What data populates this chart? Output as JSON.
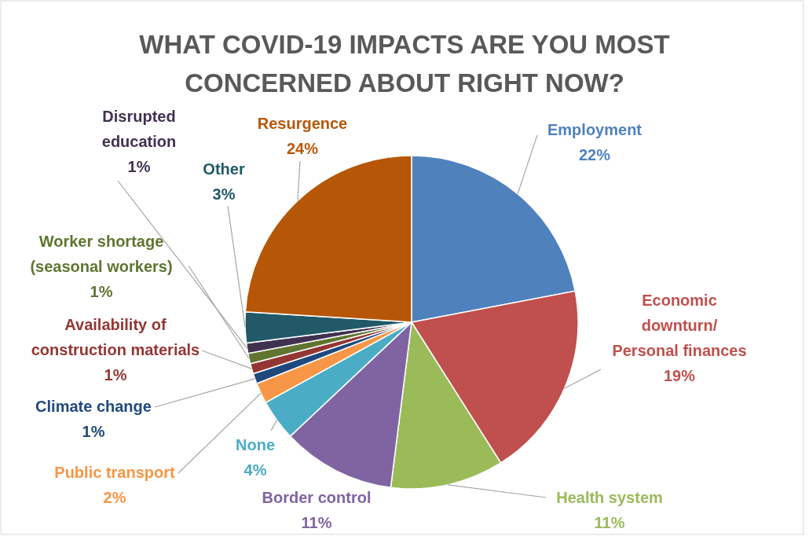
{
  "chart_data": {
    "type": "pie",
    "title": "WHAT COVID-19 IMPACTS ARE YOU MOST\nCONCERNED ABOUT RIGHT NOW?",
    "categories": [
      "Employment",
      "Economic\ndownturn/\nPersonal finances",
      "Health system",
      "Border control",
      "None",
      "Public transport",
      "Climate change",
      "Availability of\nconstruction materials",
      "Worker shortage\n(seasonal workers)",
      "Disrupted\neducation",
      "Other",
      "Resurgence"
    ],
    "values": [
      22,
      19,
      11,
      11,
      4,
      2,
      1,
      1,
      1,
      1,
      3,
      24
    ],
    "value_labels": [
      "22%",
      "19%",
      "11%",
      "11%",
      "4%",
      "2%",
      "1%",
      "1%",
      "1%",
      "1%",
      "3%",
      "24%"
    ],
    "colors": [
      "#4f81bd",
      "#c0504d",
      "#9bbb59",
      "#8064a2",
      "#4bacc6",
      "#f79646",
      "#1f497d",
      "#943634",
      "#5f7530",
      "#403151",
      "#215968",
      "#b65708"
    ]
  }
}
